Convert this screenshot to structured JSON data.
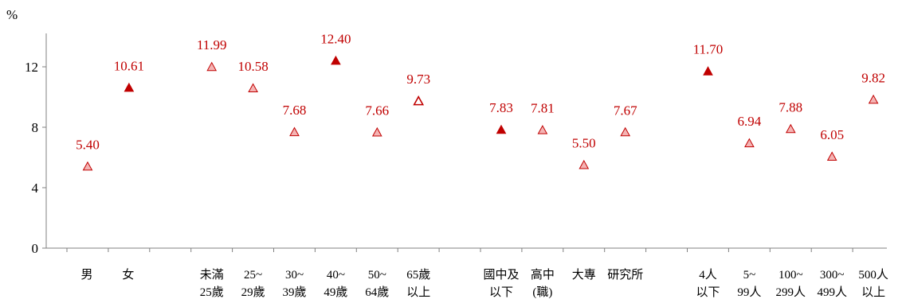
{
  "chart_data": {
    "type": "scatter",
    "unit_label": "%",
    "ylim": [
      0,
      14
    ],
    "yticks": [
      0,
      4,
      8,
      12
    ],
    "grid": false,
    "legend": "none",
    "marker": "triangle",
    "colors": {
      "marker_stroke": "#c00000",
      "marker_fill_light": "#f4b4b4",
      "marker_fill_dark": "#c00000",
      "label": "#c00000",
      "axis": "#808080"
    },
    "categories": [
      {
        "line1": "男",
        "line2": "",
        "value": 5.4,
        "label": "5.40",
        "style": "light",
        "group": "gender"
      },
      {
        "line1": "女",
        "line2": "",
        "value": 10.61,
        "label": "10.61",
        "style": "dark",
        "group": "gender"
      },
      {
        "line1": "未滿",
        "line2": "25歲",
        "value": 11.99,
        "label": "11.99",
        "style": "light",
        "group": "age"
      },
      {
        "line1": "25~",
        "line2": "29歲",
        "value": 10.58,
        "label": "10.58",
        "style": "light",
        "group": "age"
      },
      {
        "line1": "30~",
        "line2": "39歲",
        "value": 7.68,
        "label": "7.68",
        "style": "light",
        "group": "age"
      },
      {
        "line1": "40~",
        "line2": "49歲",
        "value": 12.4,
        "label": "12.40",
        "style": "dark",
        "group": "age"
      },
      {
        "line1": "50~",
        "line2": "64歲",
        "value": 7.66,
        "label": "7.66",
        "style": "light",
        "group": "age"
      },
      {
        "line1": "65歲",
        "line2": "以上",
        "value": 9.73,
        "label": "9.73",
        "style": "outline",
        "group": "age"
      },
      {
        "line1": "國中及",
        "line2": "以下",
        "value": 7.83,
        "label": "7.83",
        "style": "dark",
        "group": "education"
      },
      {
        "line1": "高中",
        "line2": "(職)",
        "value": 7.81,
        "label": "7.81",
        "style": "light",
        "group": "education"
      },
      {
        "line1": "大專",
        "line2": "",
        "value": 5.5,
        "label": "5.50",
        "style": "light",
        "group": "education"
      },
      {
        "line1": "研究所",
        "line2": "",
        "value": 7.67,
        "label": "7.67",
        "style": "light",
        "group": "education"
      },
      {
        "line1": "4人",
        "line2": "以下",
        "value": 11.7,
        "label": "11.70",
        "style": "dark",
        "group": "company_size"
      },
      {
        "line1": "5~",
        "line2": "99人",
        "value": 6.94,
        "label": "6.94",
        "style": "light",
        "group": "company_size"
      },
      {
        "line1": "100~",
        "line2": "299人",
        "value": 7.88,
        "label": "7.88",
        "style": "light",
        "group": "company_size"
      },
      {
        "line1": "300~",
        "line2": "499人",
        "value": 6.05,
        "label": "6.05",
        "style": "light",
        "group": "company_size"
      },
      {
        "line1": "500人",
        "line2": "以上",
        "value": 9.82,
        "label": "9.82",
        "style": "light",
        "group": "company_size"
      }
    ]
  }
}
